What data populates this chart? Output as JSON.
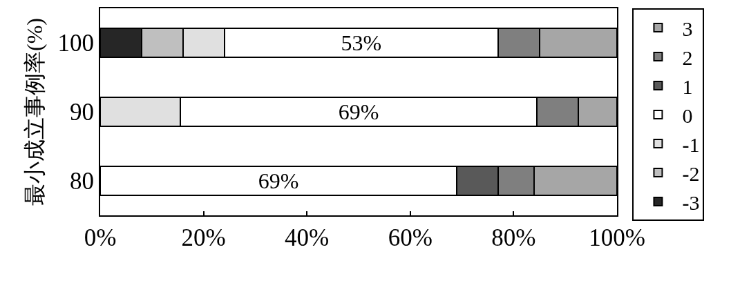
{
  "chart_data": {
    "type": "bar",
    "orientation": "horizontal",
    "stacked": true,
    "ylabel": "最小成立事例率(%)",
    "categories": [
      "100",
      "90",
      "80"
    ],
    "series": [
      {
        "name": "-3",
        "color": "#262626",
        "values": [
          8,
          null,
          null
        ]
      },
      {
        "name": "-2",
        "color": "#bfbfbf",
        "values": [
          8,
          null,
          null
        ]
      },
      {
        "name": "-1",
        "color": "#e0e0e0",
        "values": [
          8,
          15.5,
          null
        ]
      },
      {
        "name": "0",
        "color": "#ffffff",
        "values": [
          53,
          69,
          69
        ],
        "value_labels": [
          "53%",
          "69%",
          "69%"
        ]
      },
      {
        "name": "1",
        "color": "#595959",
        "values": [
          null,
          null,
          8
        ]
      },
      {
        "name": "2",
        "color": "#7f7f7f",
        "values": [
          8,
          8,
          7
        ]
      },
      {
        "name": "3",
        "color": "#a6a6a6",
        "values": [
          15,
          7.5,
          16
        ]
      }
    ],
    "xlim": [
      0,
      100
    ],
    "xticks": [
      {
        "value": 0,
        "label": "0%"
      },
      {
        "value": 20,
        "label": "20%"
      },
      {
        "value": 40,
        "label": "40%"
      },
      {
        "value": 60,
        "label": "60%"
      },
      {
        "value": 80,
        "label": "80%"
      },
      {
        "value": 100,
        "label": "100%"
      }
    ],
    "legend": "right",
    "grid": false
  }
}
